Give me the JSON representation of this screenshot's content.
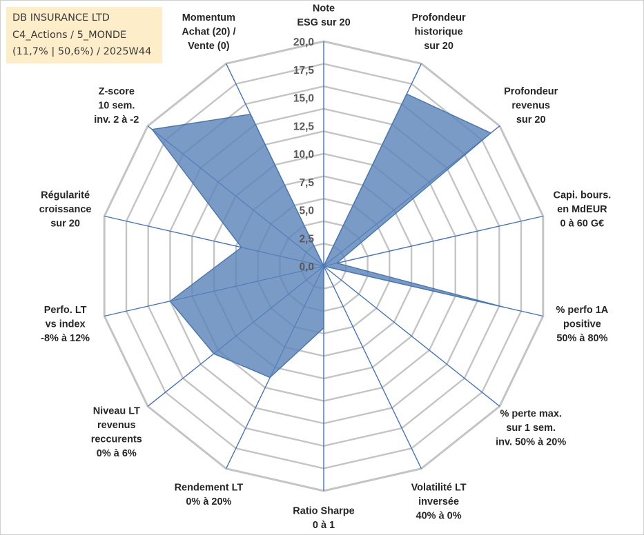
{
  "header": {
    "lines": [
      "DB INSURANCE LTD",
      "C4_Actions / 5_MONDE",
      "(11,7% | 50,6%) / 2025W44"
    ]
  },
  "chart_data": {
    "type": "radar",
    "title": "",
    "rmin": 0,
    "rmax": 20,
    "ticks": [
      "0,0",
      "2,5",
      "5,0",
      "7,5",
      "10,0",
      "12,5",
      "15,0",
      "17,5",
      "20,0"
    ],
    "grid_levels": 10,
    "axes": [
      {
        "label": [
          "Note",
          "ESG sur 20"
        ],
        "value": 0
      },
      {
        "label": [
          "Profondeur",
          "historique",
          "sur 20"
        ],
        "value": 17
      },
      {
        "label": [
          "Profondeur",
          "revenus",
          "sur 20"
        ],
        "value": 19
      },
      {
        "label": [
          "Capi. bours.",
          "en MdEUR",
          "0 à 60 G€"
        ],
        "value": 1.2
      },
      {
        "label": [
          "% perfo 1A",
          "positive",
          "50% à 80%"
        ],
        "value": 16.5
      },
      {
        "label": [
          "% perte max.",
          "sur 1 sem.",
          "inv. 50% à 20%"
        ],
        "value": 0
      },
      {
        "label": [
          "Volatilité LT",
          "inversée",
          "40% à 0%"
        ],
        "value": 0
      },
      {
        "label": [
          "Ratio Sharpe",
          "0 à 1"
        ],
        "value": 5.5
      },
      {
        "label": [
          "Rendement LT",
          "0% à 20%"
        ],
        "value": 11
      },
      {
        "label": [
          "Niveau LT",
          "revenus",
          "reccurents",
          "0% à 6%"
        ],
        "value": 12.5
      },
      {
        "label": [
          "Perfo. LT",
          "vs index",
          "-8% à 12%"
        ],
        "value": 14
      },
      {
        "label": [
          "Régularité",
          "croissance",
          "sur 20"
        ],
        "value": 7.5
      },
      {
        "label": [
          "Z-score",
          "10 sem.",
          "inv. 2 à -2"
        ],
        "value": 19.5
      },
      {
        "label": [
          "Momentum",
          "Achat (20) /",
          "Vente (0)"
        ],
        "value": 15
      }
    ],
    "series": [
      {
        "values": [
          0,
          17,
          19,
          1.2,
          16.5,
          0,
          0,
          5.5,
          11,
          12.5,
          14,
          7.5,
          19.5,
          15
        ],
        "color": "#5b85b9"
      }
    ],
    "colors": {
      "grid": "#c4c4c4",
      "spoke": "#4472c4",
      "fill": "#5b85b9",
      "stroke": "#4a78b3"
    },
    "grid": true,
    "legend": "none"
  }
}
